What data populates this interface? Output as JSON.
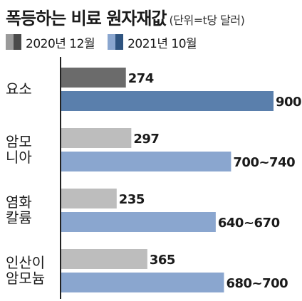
{
  "title": "폭등하는 비료 원자재값",
  "subtitle": "(단위=t당 달러)",
  "legend": [
    {
      "label": "2020년 12월",
      "color": "#9a9a9a",
      "accent": "#4a4a4a"
    },
    {
      "label": "2021년 10월",
      "color": "#8aa6cf",
      "accent": "#2f5480"
    }
  ],
  "chart_data": {
    "type": "bar",
    "orientation": "horizontal",
    "categories": [
      [
        "요소"
      ],
      [
        "암모",
        "니아"
      ],
      [
        "염화",
        "칼륨"
      ],
      [
        "인산이",
        "암모늄"
      ]
    ],
    "series": [
      {
        "name": "2020년 12월",
        "values": [
          274,
          297,
          235,
          365
        ],
        "labels": [
          "274",
          "297",
          "235",
          "365"
        ]
      },
      {
        "name": "2021년 10월",
        "values": [
          900,
          720,
          655,
          690
        ],
        "labels": [
          "900",
          "700~740",
          "640~670",
          "680~700"
        ]
      }
    ],
    "xlim": [
      0,
      900
    ],
    "colors": {
      "series0_first": "#6b6b6b",
      "series0": "#bdbdbd",
      "series1_first": "#5a7fac",
      "series1": "#8aa6cf",
      "axis": "#222222"
    }
  }
}
